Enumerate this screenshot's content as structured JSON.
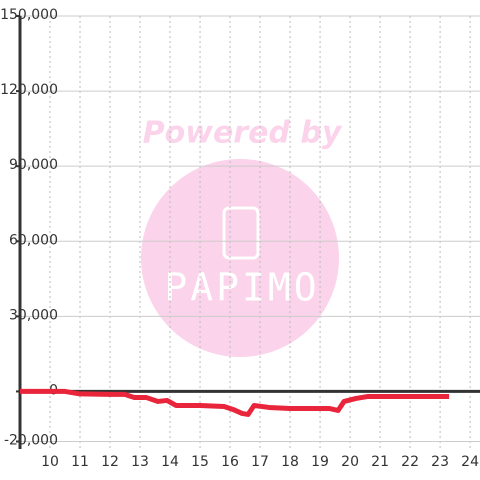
{
  "chart_data": {
    "type": "line",
    "x": [
      9,
      10.5,
      11,
      12,
      12.5,
      12.8,
      13.2,
      13.6,
      13.9,
      14.2,
      15,
      15.8,
      16.1,
      16.4,
      16.6,
      16.8,
      17.3,
      18,
      19.3,
      19.6,
      19.8,
      20.2,
      20.6,
      23.3
    ],
    "series": [
      {
        "color": "#e8253a",
        "values": [
          0,
          0,
          -1000,
          -1200,
          -1200,
          -2400,
          -2400,
          -4000,
          -3600,
          -5600,
          -5600,
          -6000,
          -7200,
          -8800,
          -9200,
          -5600,
          -6400,
          -6800,
          -6800,
          -7600,
          -4000,
          -2800,
          -2000,
          -2000
        ]
      }
    ],
    "xlim": [
      9,
      24.33
    ],
    "ylim": [
      -23000,
      150000
    ],
    "xticks": [
      10,
      11,
      12,
      13,
      14,
      15,
      16,
      17,
      18,
      19,
      20,
      21,
      22,
      23,
      24
    ],
    "yticks": [
      {
        "value": -20000,
        "label": "-20,000"
      },
      0,
      {
        "value": 30000,
        "label": "30,000"
      },
      {
        "value": 60000,
        "label": "60,000"
      },
      {
        "value": 90000,
        "label": "90,000"
      },
      {
        "value": 120000,
        "label": "120,000"
      },
      {
        "value": 150000,
        "label": "150,000"
      }
    ],
    "grid": true
  },
  "watermark": {
    "line1": "Powered by",
    "line2": "PAPIMO"
  }
}
